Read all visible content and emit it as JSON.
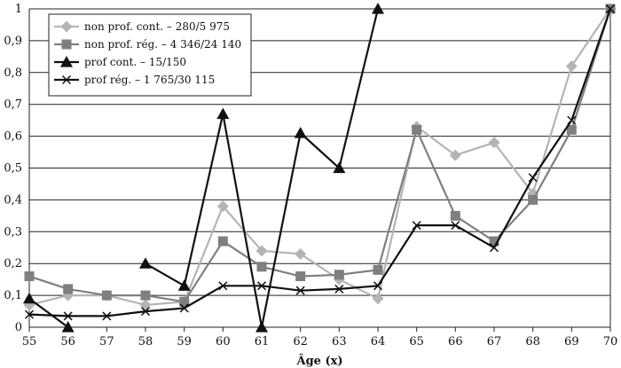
{
  "chart_data": {
    "type": "line",
    "title": "",
    "xlabel": "Âge (x)",
    "ylabel": "",
    "categories": [
      "55",
      "56",
      "57",
      "58",
      "59",
      "60",
      "61",
      "62",
      "63",
      "64",
      "65",
      "66",
      "67",
      "68",
      "69",
      "70"
    ],
    "x": [
      55,
      56,
      57,
      58,
      59,
      60,
      61,
      62,
      63,
      64,
      65,
      66,
      67,
      68,
      69,
      70
    ],
    "xlim": [
      55,
      70
    ],
    "ylim": [
      0,
      1
    ],
    "y_ticks": [
      "0",
      "0,1",
      "0,2",
      "0,3",
      "0,4",
      "0,5",
      "0,6",
      "0,7",
      "0,8",
      "0,9",
      "1"
    ],
    "x_ticks": [
      "55",
      "56",
      "57",
      "58",
      "59",
      "60",
      "61",
      "62",
      "63",
      "64",
      "65",
      "66",
      "67",
      "68",
      "69",
      "70"
    ],
    "grid": "horizontal",
    "legend_position": "top-left",
    "series": [
      {
        "name": "non prof. cont. – 280/5 975",
        "marker": "diamond",
        "color": "#b4b4b4",
        "values": [
          0.07,
          0.1,
          0.1,
          0.07,
          0.08,
          0.38,
          0.24,
          0.23,
          0.15,
          0.09,
          0.63,
          0.54,
          0.58,
          0.42,
          0.82,
          1.0
        ]
      },
      {
        "name": "non prof. rég. – 4 346/24 140",
        "marker": "square",
        "color": "#7f7f7f",
        "values": [
          0.16,
          0.12,
          0.1,
          0.1,
          0.08,
          0.27,
          0.19,
          0.16,
          0.165,
          0.18,
          0.62,
          0.35,
          0.27,
          0.4,
          0.62,
          1.0
        ]
      },
      {
        "name": "prof cont. – 15/150",
        "marker": "triangle",
        "color": "#111111",
        "values": [
          0.09,
          0.0,
          null,
          0.2,
          0.13,
          0.67,
          0.0,
          0.61,
          0.5,
          1.0,
          null,
          null,
          null,
          null,
          null,
          null
        ]
      },
      {
        "name": "prof rég. – 1 765/30 115",
        "marker": "x",
        "color": "#111111",
        "values": [
          0.04,
          0.035,
          0.035,
          0.05,
          0.06,
          0.13,
          0.13,
          0.115,
          0.12,
          0.13,
          0.32,
          0.32,
          0.25,
          0.47,
          0.65,
          1.0
        ]
      }
    ]
  }
}
